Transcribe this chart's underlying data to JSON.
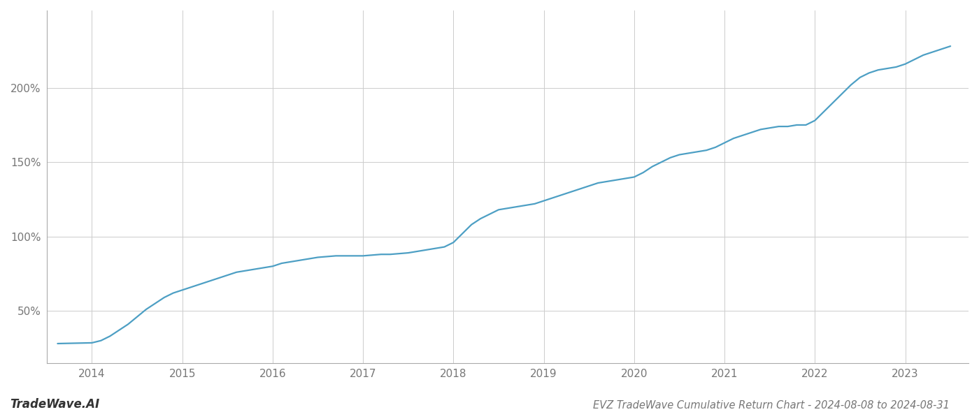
{
  "title": "EVZ TradeWave Cumulative Return Chart - 2024-08-08 to 2024-08-31",
  "watermark": "TradeWave.AI",
  "line_color": "#4d9fc4",
  "background_color": "#ffffff",
  "grid_color": "#cccccc",
  "x_years": [
    2013.62,
    2014.0,
    2014.1,
    2014.2,
    2014.3,
    2014.4,
    2014.5,
    2014.6,
    2014.7,
    2014.8,
    2014.9,
    2015.0,
    2015.1,
    2015.2,
    2015.3,
    2015.4,
    2015.5,
    2015.6,
    2015.7,
    2015.8,
    2015.9,
    2016.0,
    2016.1,
    2016.2,
    2016.3,
    2016.4,
    2016.5,
    2016.6,
    2016.7,
    2016.8,
    2016.9,
    2017.0,
    2017.1,
    2017.2,
    2017.3,
    2017.4,
    2017.5,
    2017.6,
    2017.7,
    2017.8,
    2017.9,
    2018.0,
    2018.1,
    2018.2,
    2018.3,
    2018.4,
    2018.5,
    2018.6,
    2018.7,
    2018.8,
    2018.9,
    2019.0,
    2019.1,
    2019.2,
    2019.3,
    2019.4,
    2019.5,
    2019.6,
    2019.7,
    2019.8,
    2019.9,
    2020.0,
    2020.1,
    2020.2,
    2020.3,
    2020.4,
    2020.5,
    2020.6,
    2020.7,
    2020.8,
    2020.9,
    2021.0,
    2021.1,
    2021.2,
    2021.3,
    2021.4,
    2021.5,
    2021.6,
    2021.7,
    2021.8,
    2021.9,
    2022.0,
    2022.1,
    2022.2,
    2022.3,
    2022.4,
    2022.5,
    2022.6,
    2022.7,
    2022.8,
    2022.9,
    2023.0,
    2023.1,
    2023.2,
    2023.3,
    2023.4,
    2023.5
  ],
  "y_values": [
    28,
    28.5,
    30,
    33,
    37,
    41,
    46,
    51,
    55,
    59,
    62,
    64,
    66,
    68,
    70,
    72,
    74,
    76,
    77,
    78,
    79,
    80,
    82,
    83,
    84,
    85,
    86,
    86.5,
    87,
    87,
    87,
    87,
    87.5,
    88,
    88,
    88.5,
    89,
    90,
    91,
    92,
    93,
    96,
    102,
    108,
    112,
    115,
    118,
    119,
    120,
    121,
    122,
    124,
    126,
    128,
    130,
    132,
    134,
    136,
    137,
    138,
    139,
    140,
    143,
    147,
    150,
    153,
    155,
    156,
    157,
    158,
    160,
    163,
    166,
    168,
    170,
    172,
    173,
    174,
    174,
    175,
    175,
    178,
    184,
    190,
    196,
    202,
    207,
    210,
    212,
    213,
    214,
    216,
    219,
    222,
    224,
    226,
    228
  ],
  "xlim": [
    2013.5,
    2023.7
  ],
  "ylim": [
    15,
    252
  ],
  "yticks": [
    50,
    100,
    150,
    200
  ],
  "ytick_labels": [
    "50%",
    "100%",
    "150%",
    "200%"
  ],
  "xticks": [
    2014,
    2015,
    2016,
    2017,
    2018,
    2019,
    2020,
    2021,
    2022,
    2023
  ],
  "line_width": 1.6,
  "title_fontsize": 10.5,
  "tick_fontsize": 11,
  "watermark_fontsize": 12
}
